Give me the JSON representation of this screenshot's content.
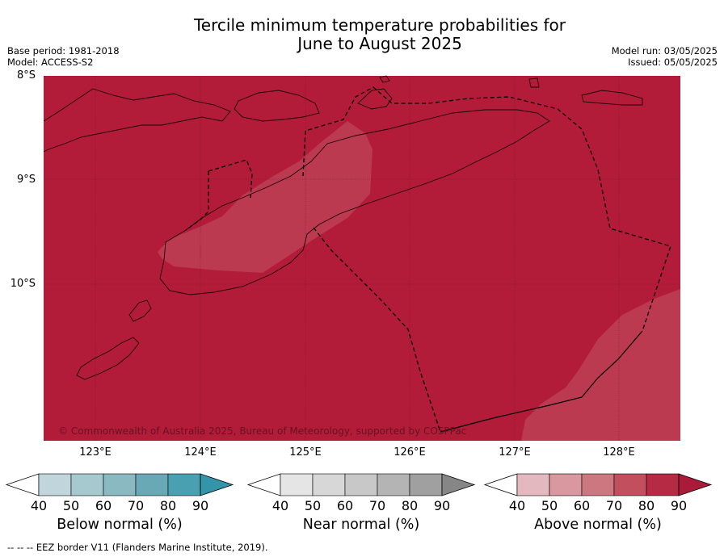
{
  "title_line1": "Tercile minimum temperature probabilities for",
  "title_line2": "June to August 2025",
  "base_period": "Base period: 1981-2018",
  "model": "Model: ACCESS-S2",
  "model_run": "Model run: 03/05/2025",
  "issued": "Issued: 05/05/2025",
  "copyright": "© Commonwealth of Australia 2025, Bureau of Meteorology, supported by COSPPac",
  "footer": "--  --  -- EEZ border V11 (Flanders Marine Institute, 2019).",
  "lat_labels": [
    "8°S",
    "9°S",
    "10°S"
  ],
  "lon_labels": [
    "123°E",
    "124°E",
    "125°E",
    "126°E",
    "127°E",
    "128°E"
  ],
  "legends": [
    {
      "title": "Below normal (%)",
      "ticks": [
        "40",
        "50",
        "60",
        "70",
        "80",
        "90"
      ],
      "colors": [
        "#c0d6dc",
        "#a5c9cf",
        "#8ab9c2",
        "#69a8b5",
        "#48a0b1",
        "#3494a8"
      ]
    },
    {
      "title": "Near normal (%)",
      "ticks": [
        "40",
        "50",
        "60",
        "70",
        "80",
        "90"
      ],
      "colors": [
        "#e5e5e5",
        "#d7d7d7",
        "#c8c8c8",
        "#b4b4b4",
        "#a0a0a0",
        "#868686"
      ]
    },
    {
      "title": "Above normal (%)",
      "ticks": [
        "40",
        "50",
        "60",
        "70",
        "80",
        "90"
      ],
      "colors": [
        "#e3b8bf",
        "#d9979f",
        "#cd7780",
        "#c14f5e",
        "#b52b44",
        "#a91b38"
      ]
    }
  ],
  "map_colors": {
    "above_80": "#b21c38",
    "above_70": "#bb3a4f"
  }
}
